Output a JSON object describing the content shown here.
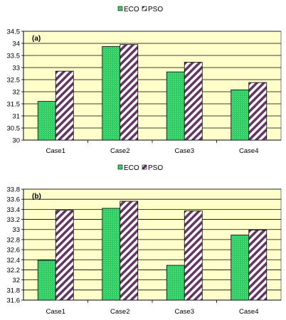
{
  "chart_data": [
    {
      "type": "bar",
      "panel_label": "(a)",
      "categories": [
        "Case1",
        "Case2",
        "Case3",
        "Case4"
      ],
      "series": [
        {
          "name": "ECO",
          "values": [
            31.6,
            33.87,
            32.82,
            32.08
          ]
        },
        {
          "name": "PSO",
          "values": [
            32.85,
            33.95,
            33.22,
            32.38
          ]
        }
      ],
      "ylim": [
        30,
        34.5
      ],
      "yticks": [
        "30",
        "30.5",
        "31",
        "31.5",
        "32",
        "32.5",
        "33",
        "33.5",
        "34",
        "34.5"
      ],
      "ytick_values": [
        30,
        30.5,
        31,
        31.5,
        32,
        32.5,
        33,
        33.5,
        34,
        34.5
      ],
      "grid": true,
      "legend_position": "top-center"
    },
    {
      "type": "bar",
      "panel_label": "(b)",
      "categories": [
        "Case1",
        "Case2",
        "Case3",
        "Case4"
      ],
      "series": [
        {
          "name": "ECO",
          "values": [
            32.39,
            33.42,
            32.29,
            32.89
          ]
        },
        {
          "name": "PSO",
          "values": [
            33.38,
            33.56,
            33.37,
            32.99
          ]
        }
      ],
      "ylim": [
        31.6,
        33.8
      ],
      "yticks": [
        "31.6",
        "31.8",
        "32",
        "32.2",
        "32.4",
        "32.6",
        "32.8",
        "33",
        "33.2",
        "33.4",
        "33.6",
        "33.8"
      ],
      "ytick_values": [
        31.6,
        31.8,
        32.0,
        32.2,
        32.4,
        32.6,
        32.8,
        33.0,
        33.2,
        33.4,
        33.6,
        33.8
      ],
      "grid": true,
      "legend_position": "top-center"
    }
  ],
  "colors": {
    "plot_background": "#ffffcc",
    "eco_fill": "#33cc66",
    "pso_stripe": "#663366",
    "gridline": "#000000"
  }
}
